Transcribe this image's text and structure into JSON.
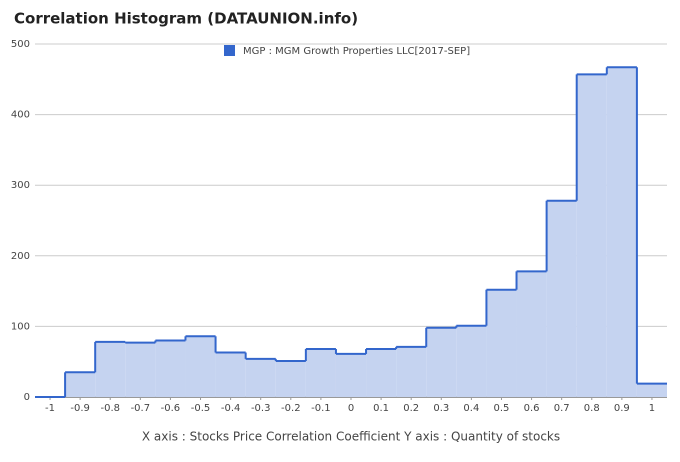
{
  "chart_data": {
    "type": "histogram",
    "title": "Correlation Histogram (DATAUNION.info)",
    "axis_note": "X axis : Stocks Price Correlation Coefficient  Y axis : Quantity of stocks",
    "series": [
      {
        "name": "MGP : MGM Growth Properties LLC[2017-SEP]",
        "color": "#3366cc",
        "fill": "#c5d3f0",
        "bins": [
          -1.05,
          -0.95,
          -0.85,
          -0.75,
          -0.65,
          -0.55,
          -0.45,
          -0.35,
          -0.25,
          -0.15,
          -0.05,
          0.05,
          0.15,
          0.25,
          0.35,
          0.45,
          0.55,
          0.65,
          0.75,
          0.85,
          0.95,
          1.05
        ],
        "values": [
          0,
          35,
          78,
          77,
          80,
          86,
          63,
          54,
          51,
          68,
          61,
          68,
          71,
          98,
          101,
          152,
          178,
          278,
          457,
          467,
          19
        ]
      }
    ],
    "xlim": [
      -1.05,
      1.05
    ],
    "xticks": [
      -1,
      -0.9,
      -0.8,
      -0.7,
      -0.6,
      -0.5,
      -0.4,
      -0.3,
      -0.2,
      -0.1,
      0,
      0.1,
      0.2,
      0.3,
      0.4,
      0.5,
      0.6,
      0.7,
      0.8,
      0.9,
      1
    ],
    "ylim": [
      0,
      500
    ],
    "yticks": [
      0,
      100,
      200,
      300,
      400,
      500
    ],
    "grid": true,
    "legend": "top"
  }
}
